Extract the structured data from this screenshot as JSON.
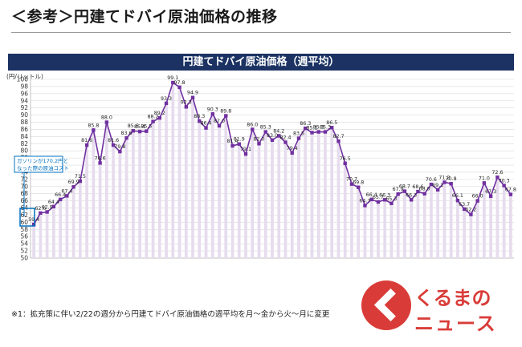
{
  "page_title": "＜参考＞円建てドバイ原油価格の推移",
  "footnote": "※1：拡充策に伴い2/22の週分から円建てドバイ原油価格の週平均を月～金から火～月に変更",
  "logo": {
    "line1": "くるまの",
    "line2": "ニュース"
  },
  "colors": {
    "banner": "#1b3262",
    "line": "#7030a0",
    "marker": "#7030a0",
    "callout": "#0070c0",
    "logo": "#d93c38"
  },
  "chart_data": {
    "type": "line",
    "title": "円建てドバイ原油価格（週平均）",
    "ylabel": "(円/リットル)",
    "ylim": [
      50,
      100
    ],
    "yticks": [
      50,
      52,
      54,
      56,
      58,
      60,
      62,
      64,
      66,
      68,
      70,
      72,
      74,
      76,
      78,
      80,
      82,
      84,
      86,
      88,
      90,
      92,
      94,
      96,
      98,
      100
    ],
    "grid": true,
    "annotation": "ガソリンが170.2円と\nなった際の原油コスト",
    "values": [
      59.4,
      62.6,
      62.9,
      64.4,
      66.4,
      67.4,
      69.9,
      71.5,
      81.6,
      85.8,
      76.6,
      88.0,
      81.6,
      79.8,
      83.6,
      85.6,
      85.4,
      85.5,
      88.2,
      89.2,
      93.3,
      99.1,
      97.8,
      92.3,
      94.9,
      88.3,
      86.4,
      90.3,
      87.0,
      89.8,
      81.4,
      81.9,
      79.1,
      86.0,
      82.0,
      85.3,
      83.0,
      84.2,
      82.4,
      79.4,
      83.5,
      86.3,
      85.1,
      85.3,
      85.3,
      86.5,
      82.7,
      76.5,
      70.7,
      69.8,
      64.7,
      66.4,
      65.7,
      66.3,
      65.3,
      67.9,
      68.7,
      66.3,
      68.6,
      68.0,
      70.6,
      69.1,
      71.2,
      70.8,
      66.1,
      63.7,
      62.2,
      66.0,
      71.0,
      67.3,
      72.6,
      70.3,
      67.8
    ]
  }
}
